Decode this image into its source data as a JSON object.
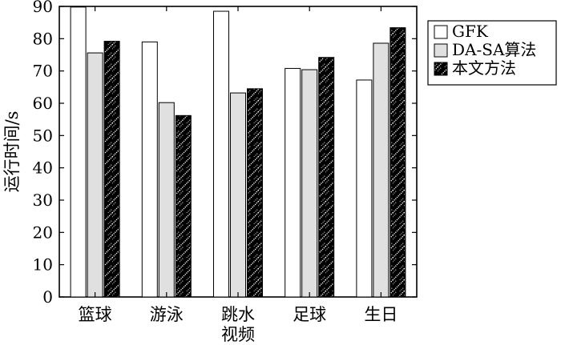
{
  "chart_data": {
    "type": "bar",
    "categories": [
      "篮球",
      "游泳",
      "跳水",
      "足球",
      "生日"
    ],
    "xlabel": "视频",
    "ylabel": "运行时间/s",
    "ylim": [
      0,
      90
    ],
    "yticks": [
      0,
      10,
      20,
      30,
      40,
      50,
      60,
      70,
      80,
      90
    ],
    "grid": false,
    "legend_position": "top-right",
    "series": [
      {
        "name": "GFK",
        "values": [
          89.8,
          79.0,
          88.5,
          70.8,
          67.2
        ],
        "color": "#ffffff",
        "pattern": "none"
      },
      {
        "name": "DA-SA算法",
        "values": [
          75.6,
          60.2,
          63.2,
          70.4,
          78.6
        ],
        "color": "#e0e0e0",
        "pattern": "none"
      },
      {
        "name": "本文方法",
        "values": [
          79.2,
          56.2,
          64.5,
          74.2,
          83.4
        ],
        "color": "#000000",
        "pattern": "dotted-hatch"
      }
    ]
  }
}
